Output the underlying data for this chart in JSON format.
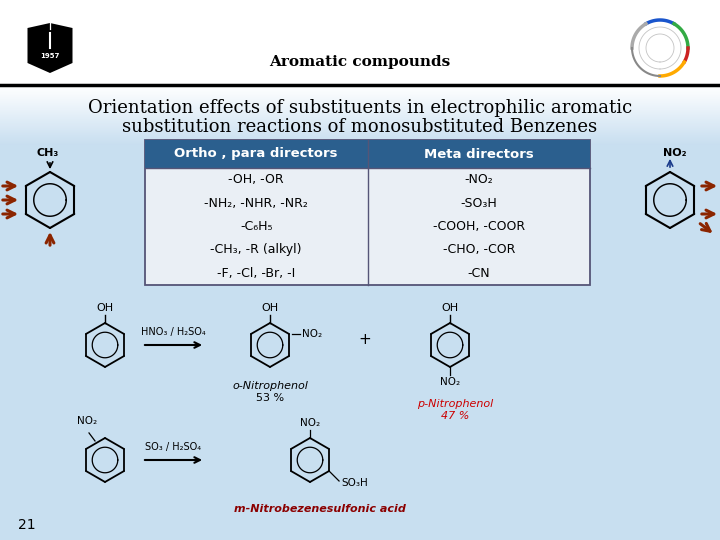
{
  "title": "Aromatic compounds",
  "subtitle_line1": "Orientation effects of substituents in electrophilic aromatic",
  "subtitle_line2": "substitution reactions of monosubstituted Benzenes",
  "bg_top": "#ffffff",
  "bg_bottom": "#c8dff0",
  "header_color": "#2b5f8e",
  "header_text_color": "#ffffff",
  "table_bg": "#eaeff5",
  "col1_header": "Ortho , para directors",
  "col2_header": "Meta directors",
  "col1_items": [
    "-OH, -OR",
    "-NH₂, -NHR, -NR₂",
    "-C₆H₅",
    "-CH₃, -R (alkyl)",
    "-F, -Cl, -Br, -I"
  ],
  "col2_items": [
    "-NO₂",
    "-SO₃H",
    "-COOH, -COOR",
    "-CHO, -COR",
    "-CN"
  ],
  "page_number": "21",
  "reaction1_reagent": "HNO₃ / H₂SO₄",
  "reaction2_reagent": "SO₃ / H₂SO₄",
  "product1_label": "o-Nitrophenol",
  "product1_pct": "53 %",
  "product2_label": "p-Nitrophenol",
  "product2_pct": "47 %",
  "product3_label": "m-Nitrobezenesulfonic acid",
  "arrow_color": "#8B2500",
  "blue_arrow_color": "#1a3a8a",
  "text_color": "#000000",
  "red_text_color": "#cc0000",
  "shield_colors": [
    "#1155bb",
    "#33aa44",
    "#cc2222",
    "#ffaa00"
  ],
  "divider_color": "#000000"
}
